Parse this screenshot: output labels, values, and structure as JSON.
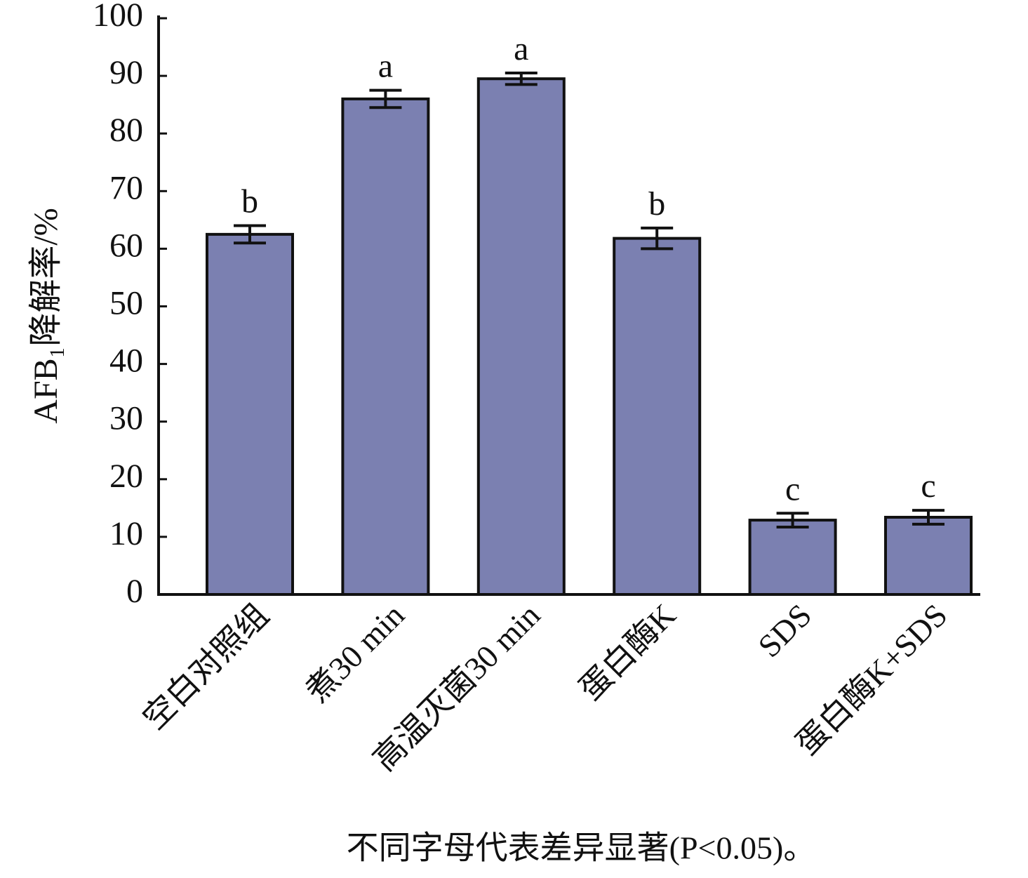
{
  "chart_data": {
    "type": "bar",
    "y_label": "AFB₁降解率/%",
    "categories": [
      "空白对照组",
      "煮30 min",
      "高温灭菌30 min",
      "蛋白酶K",
      "SDS",
      "蛋白酶K+SDS"
    ],
    "values": [
      62.5,
      86,
      89.5,
      61.8,
      12.9,
      13.4
    ],
    "errors": [
      1.5,
      1.5,
      1,
      1.8,
      1.2,
      1.2
    ],
    "significance_labels": [
      "b",
      "a",
      "a",
      "b",
      "c",
      "c"
    ],
    "color": "#7b80b1",
    "ylim": [
      0,
      100
    ],
    "yticks": [
      0,
      10,
      20,
      30,
      40,
      50,
      60,
      70,
      80,
      90,
      100
    ],
    "footnote": "不同字母代表差异显著(P<0.05)。"
  }
}
